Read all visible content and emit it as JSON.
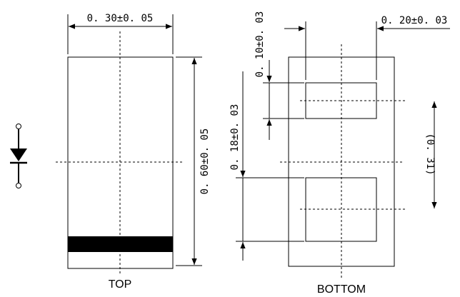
{
  "views": {
    "top": {
      "label": "TOP",
      "width_dim": "0. 30±0. 05",
      "length_dim": "0. 60±0. 05"
    },
    "bottom": {
      "label": "BOTTOM",
      "pad_length_dim": "0. 10±0. 03",
      "pad_width_dim": "0. 20±0. 03",
      "pad_gap_dim": "0. 18±0. 03",
      "pitch_dim": "(0. 31)"
    }
  },
  "symbol": {
    "icon": "diode-symbol-icon"
  },
  "colors": {
    "ink": "#000000",
    "background": "#ffffff"
  }
}
